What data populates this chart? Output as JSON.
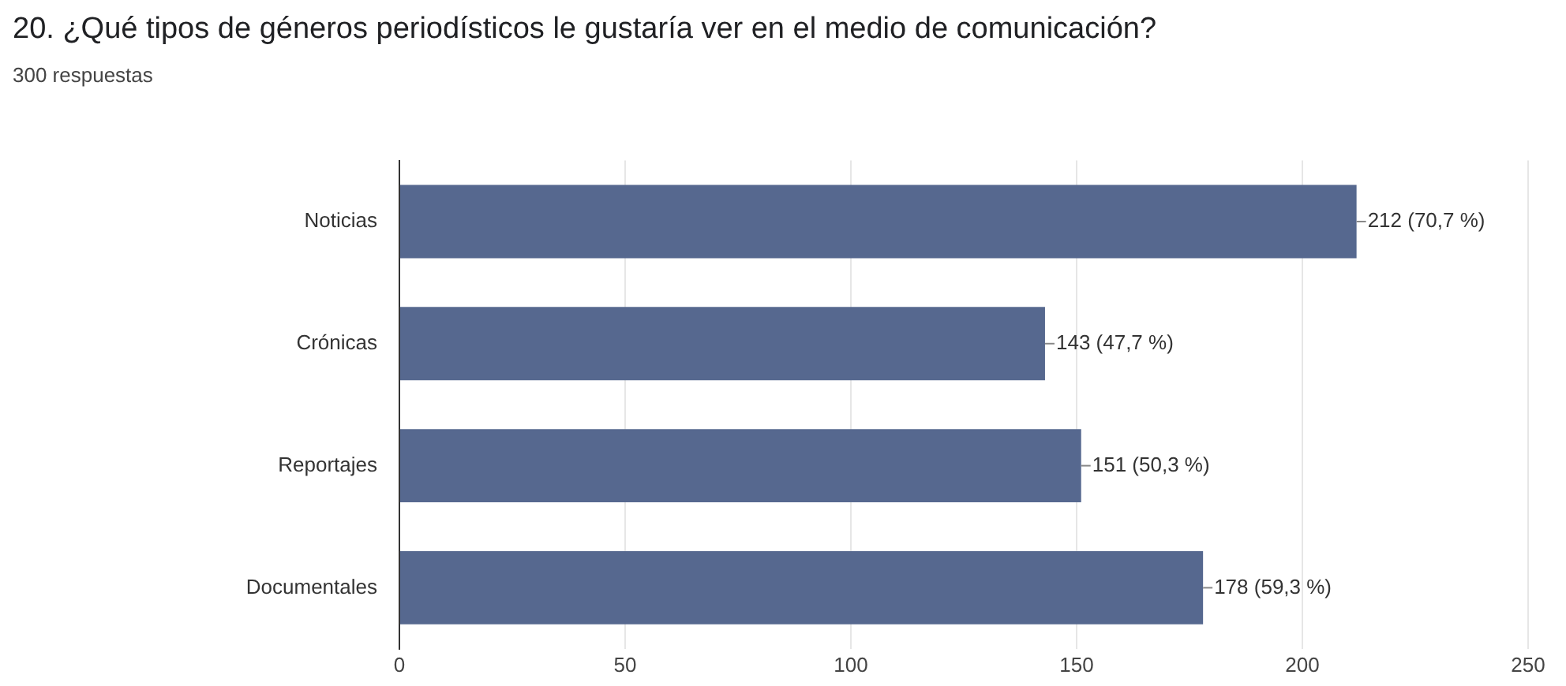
{
  "chart_data": {
    "type": "bar",
    "orientation": "horizontal",
    "title": "20. ¿Qué tipos de géneros periodísticos le gustaría ver en el medio de comunicación?",
    "subtitle": "300 respuestas",
    "categories": [
      "Noticias",
      "Crónicas",
      "Reportajes",
      "Documentales"
    ],
    "values": [
      212,
      143,
      151,
      178
    ],
    "color": "#56688f",
    "value_labels": [
      "212 (70,7 %)",
      "143 (47,7 %)",
      "151 (50,3 %)",
      "178 (59,3 %)"
    ],
    "xlim": [
      0,
      250
    ],
    "xticks": [
      0,
      50,
      100,
      150,
      200,
      250
    ],
    "grid": "x"
  }
}
